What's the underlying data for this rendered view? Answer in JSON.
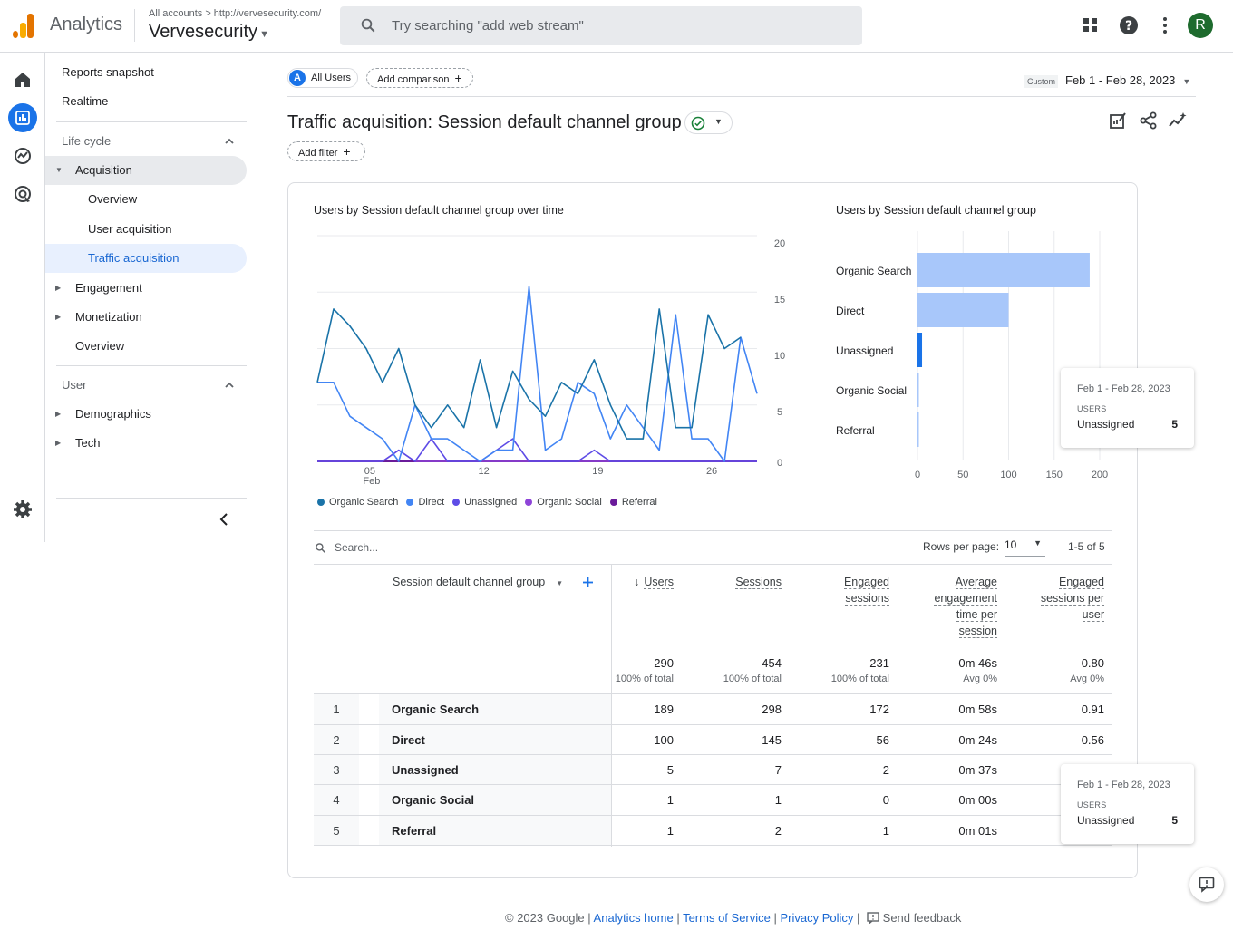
{
  "app": {
    "name": "Analytics",
    "breadcrumb_root": "All accounts",
    "breadcrumb_url": "http://vervesecurity.com/",
    "account": "Vervesecurity",
    "search_placeholder": "Try searching \"add web stream\"",
    "avatar_letter": "R"
  },
  "sidebar": {
    "reports_snapshot": "Reports snapshot",
    "realtime": "Realtime",
    "lifecycle_title": "Life cycle",
    "acquisition": "Acquisition",
    "overview": "Overview",
    "user_acquisition": "User acquisition",
    "traffic_acquisition": "Traffic acquisition",
    "engagement": "Engagement",
    "monetization": "Monetization",
    "overview2": "Overview",
    "user_title": "User",
    "demographics": "Demographics",
    "tech": "Tech"
  },
  "toolbar": {
    "all_users": "All Users",
    "all_users_badge": "A",
    "add_comparison": "Add comparison",
    "custom_label": "Custom",
    "date_range": "Feb 1 - Feb 28, 2023"
  },
  "page": {
    "title": "Traffic acquisition: Session default channel group",
    "add_filter": "Add filter"
  },
  "line_chart": {
    "title": "Users by Session default channel group over time",
    "y_ticks": [
      "20",
      "15",
      "10",
      "5",
      "0"
    ],
    "x_ticks": [
      "05",
      "12",
      "19",
      "26"
    ],
    "x_sub": "Feb"
  },
  "bar_chart": {
    "title": "Users by Session default channel group",
    "x_ticks": [
      "0",
      "50",
      "100",
      "150",
      "200"
    ]
  },
  "chart_data": [
    {
      "type": "line",
      "title": "Users by Session default channel group over time",
      "x": [
        1,
        2,
        3,
        4,
        5,
        6,
        7,
        8,
        9,
        10,
        11,
        12,
        13,
        14,
        15,
        16,
        17,
        18,
        19,
        20,
        21,
        22,
        23,
        24,
        25,
        26,
        27,
        28
      ],
      "ylim": [
        0,
        20
      ],
      "series": [
        {
          "name": "Organic Search",
          "color": "#1a73a8",
          "values": [
            7,
            13.5,
            12,
            10,
            7,
            10,
            5,
            3,
            5,
            3,
            9,
            3,
            8,
            5.5,
            4,
            7,
            6,
            9,
            5,
            2,
            2,
            13.5,
            3,
            3,
            13,
            10,
            11,
            null
          ]
        },
        {
          "name": "Direct",
          "color": "#4285f4",
          "values": [
            7,
            7,
            4,
            3,
            2,
            0,
            5,
            2,
            2,
            1,
            0,
            1,
            1,
            15.5,
            1,
            2,
            7,
            6,
            2,
            5,
            3,
            1,
            13,
            2,
            2,
            0,
            11,
            6
          ]
        },
        {
          "name": "Unassigned",
          "color": "#5e4ce6",
          "values": [
            0,
            0,
            0,
            0,
            0,
            1,
            0,
            2,
            0,
            0,
            0,
            1,
            2,
            0,
            0,
            0,
            0,
            1,
            0,
            0,
            0,
            0,
            0,
            0,
            0,
            0,
            0,
            0
          ]
        },
        {
          "name": "Organic Social",
          "color": "#8e44d8",
          "values": [
            0,
            0,
            0,
            0,
            0,
            1,
            0,
            0,
            0,
            0,
            0,
            0,
            0,
            0,
            0,
            0,
            0,
            0,
            0,
            0,
            0,
            0,
            0,
            0,
            0,
            0,
            0,
            0
          ]
        },
        {
          "name": "Referral",
          "color": "#6a1b9a",
          "values": [
            0,
            0,
            0,
            0,
            0,
            0,
            0,
            0,
            0,
            0,
            0,
            0,
            0,
            0,
            0,
            0,
            0,
            0,
            0,
            0,
            0,
            0,
            0,
            0,
            0,
            0,
            0,
            0
          ]
        }
      ]
    },
    {
      "type": "bar",
      "title": "Users by Session default channel group",
      "categories": [
        "Organic Search",
        "Direct",
        "Unassigned",
        "Organic Social",
        "Referral"
      ],
      "values": [
        189,
        100,
        5,
        1,
        1
      ],
      "xlim": [
        0,
        200
      ]
    }
  ],
  "tooltip": {
    "date": "Feb 1 - Feb 28, 2023",
    "metric": "USERS",
    "label": "Unassigned",
    "value": "5"
  },
  "table": {
    "search_placeholder": "Search...",
    "rows_per_page_label": "Rows per page:",
    "rows_per_page": "10",
    "pagination": "1-5 of 5",
    "dimension_header": "Session default channel group",
    "columns": [
      {
        "l1": "Users",
        "total": "290",
        "sub": "100% of total"
      },
      {
        "l1": "Sessions",
        "total": "454",
        "sub": "100% of total"
      },
      {
        "l1": "Engaged",
        "l2": "sessions",
        "total": "231",
        "sub": "100% of total"
      },
      {
        "l1": "Average",
        "l2": "engagement",
        "l3": "time per",
        "l4": "session",
        "total": "0m 46s",
        "sub": "Avg 0%"
      },
      {
        "l1": "Engaged",
        "l2": "sessions per",
        "l3": "user",
        "total": "0.80",
        "sub": "Avg 0%"
      }
    ],
    "rows": [
      {
        "idx": "1",
        "name": "Organic Search",
        "users": "189",
        "sessions": "298",
        "engaged": "172",
        "avg": "0m 58s",
        "per_user": "0.91"
      },
      {
        "idx": "2",
        "name": "Direct",
        "users": "100",
        "sessions": "145",
        "engaged": "56",
        "avg": "0m 24s",
        "per_user": "0.56"
      },
      {
        "idx": "3",
        "name": "Unassigned",
        "users": "5",
        "sessions": "7",
        "engaged": "2",
        "avg": "0m 37s",
        "per_user": ""
      },
      {
        "idx": "4",
        "name": "Organic Social",
        "users": "1",
        "sessions": "1",
        "engaged": "0",
        "avg": "0m 00s",
        "per_user": ""
      },
      {
        "idx": "5",
        "name": "Referral",
        "users": "1",
        "sessions": "2",
        "engaged": "1",
        "avg": "0m 01s",
        "per_user": ""
      }
    ]
  },
  "footer": {
    "copyright": "© 2023 Google |",
    "analytics_home": "Analytics home",
    "terms": "Terms of Service",
    "privacy": "Privacy Policy",
    "feedback": "Send feedback"
  }
}
